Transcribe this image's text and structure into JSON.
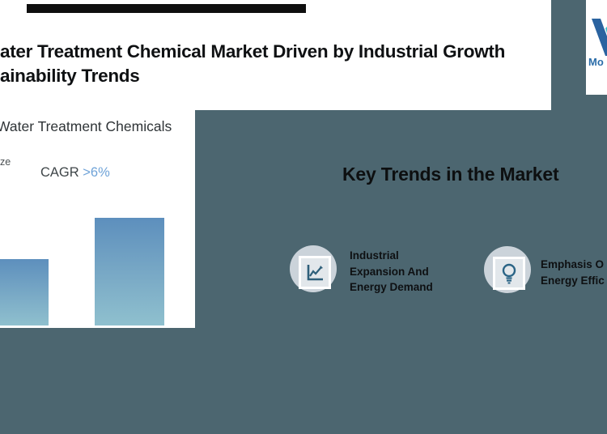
{
  "page": {
    "background_color": "#4C6670",
    "header_background": "#ffffff",
    "top_bar_color": "#0f0f0f"
  },
  "header": {
    "title_line1": "ater Treatment Chemical Market Driven by Industrial Growth",
    "title_line2": "ainability Trends"
  },
  "logo": {
    "text": "Mo",
    "icon": "logo-m-icon",
    "teal": "#38C2CC",
    "blue": "#2A63A0",
    "text_blue": "#2B6DA9"
  },
  "chart_card": {
    "title": "Water Treatment Chemicals",
    "left_fragment": "ze",
    "cagr_label": "CAGR ",
    "cagr_value": ">6%",
    "cagr_value_color": "#6FA3D8",
    "bar_gradient_top": "#5D8FBD",
    "bar_gradient_bottom": "#8FC0CE"
  },
  "chart_data": {
    "type": "bar",
    "title": "Water Treatment Chemicals",
    "categories": [
      "",
      ""
    ],
    "values": [
      82,
      133
    ],
    "value_unit": "pixel-height (axis labels not visible in crop)",
    "annotations": [
      "CAGR >6%",
      "ze"
    ],
    "legend": "none",
    "grid": false
  },
  "key_trends": {
    "heading": "Key Trends in the Market",
    "items": [
      {
        "icon": "trend-up-chart-icon",
        "label_lines": [
          "Industrial",
          "Expansion And",
          "Energy Demand"
        ]
      },
      {
        "icon": "lightbulb-icon",
        "label_lines": [
          "Emphasis O",
          "Energy Effic"
        ]
      }
    ],
    "circle_color": "#CBD3DA",
    "icon_stroke_color": "#2A6486"
  }
}
